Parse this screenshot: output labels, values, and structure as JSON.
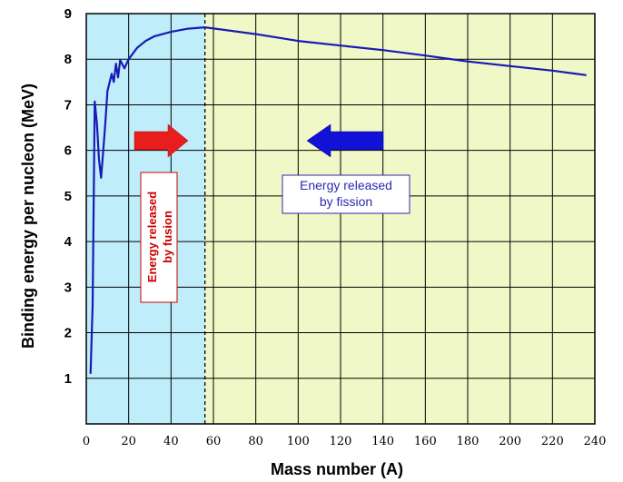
{
  "chart_data": {
    "type": "line",
    "xlabel": "Mass number (A)",
    "ylabel": "Binding energy per nucleon (MeV)",
    "xlim": [
      0,
      240
    ],
    "ylim": [
      0,
      9
    ],
    "x_ticks": [
      0,
      20,
      40,
      60,
      80,
      100,
      120,
      140,
      160,
      180,
      200,
      220,
      240
    ],
    "y_ticks": [
      1,
      2,
      3,
      4,
      5,
      6,
      7,
      8,
      9
    ],
    "grid": true,
    "series": [
      {
        "color": "#1a1ab4",
        "points": [
          [
            2,
            1.1
          ],
          [
            3,
            2.6
          ],
          [
            4,
            7.07
          ],
          [
            5,
            6.6
          ],
          [
            6,
            5.8
          ],
          [
            7,
            5.4
          ],
          [
            8,
            6.0
          ],
          [
            9,
            6.6
          ],
          [
            10,
            7.3
          ],
          [
            12,
            7.68
          ],
          [
            13,
            7.5
          ],
          [
            14,
            7.9
          ],
          [
            15,
            7.6
          ],
          [
            16,
            7.98
          ],
          [
            18,
            7.8
          ],
          [
            20,
            8.0
          ],
          [
            24,
            8.25
          ],
          [
            28,
            8.4
          ],
          [
            32,
            8.5
          ],
          [
            40,
            8.6
          ],
          [
            48,
            8.67
          ],
          [
            56,
            8.7
          ],
          [
            80,
            8.55
          ],
          [
            100,
            8.4
          ],
          [
            120,
            8.3
          ],
          [
            140,
            8.2
          ],
          [
            160,
            8.08
          ],
          [
            180,
            7.95
          ],
          [
            200,
            7.85
          ],
          [
            220,
            7.75
          ],
          [
            236,
            7.65
          ]
        ]
      }
    ],
    "regions": [
      {
        "from": 0,
        "to": 56,
        "color": "#bfeefa"
      },
      {
        "from": 56,
        "to": 240,
        "color": "#f0f8c7"
      }
    ],
    "divider_x": 56,
    "annotations": {
      "fusion": {
        "lines": [
          "Energy released",
          "by fusion"
        ],
        "color": "#cc0000",
        "arrow": "right"
      },
      "fission": {
        "lines": [
          "Energy released",
          "by fission"
        ],
        "color": "#2a2ab0",
        "arrow": "left"
      }
    }
  }
}
